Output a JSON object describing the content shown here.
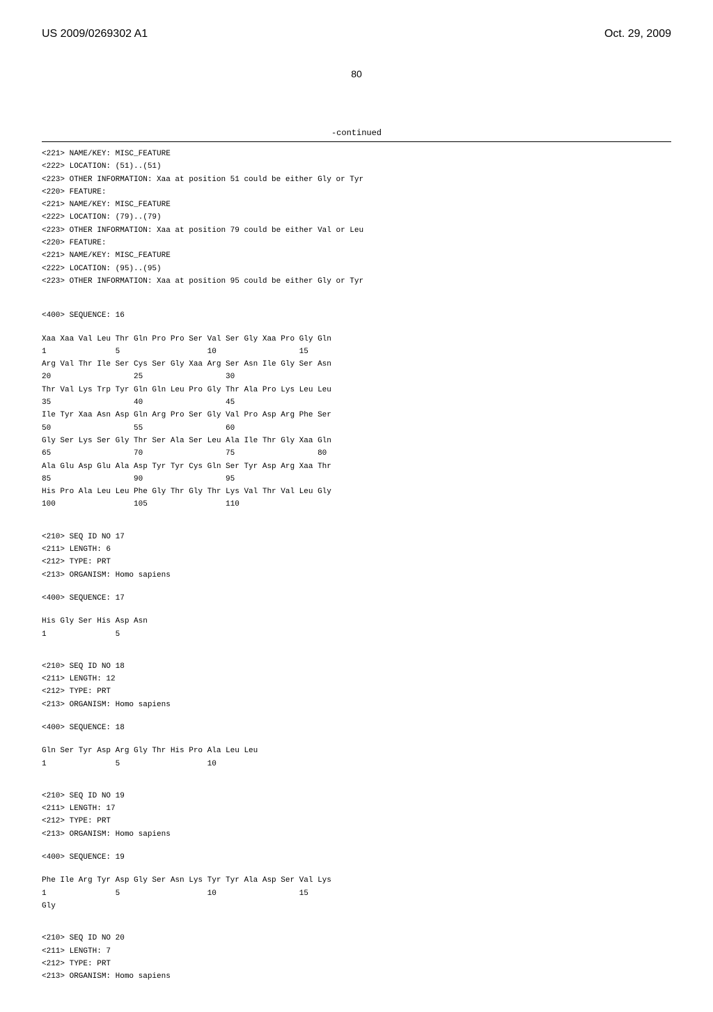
{
  "header": {
    "left": "US 2009/0269302 A1",
    "right": "Oct. 29, 2009"
  },
  "page_number": "80",
  "continued_label": "-continued",
  "features": [
    "<221> NAME/KEY: MISC_FEATURE",
    "<222> LOCATION: (51)..(51)",
    "<223> OTHER INFORMATION: Xaa at position 51 could be either Gly or Tyr",
    "<220> FEATURE:",
    "<221> NAME/KEY: MISC_FEATURE",
    "<222> LOCATION: (79)..(79)",
    "<223> OTHER INFORMATION: Xaa at position 79 could be either Val or Leu",
    "<220> FEATURE:",
    "<221> NAME/KEY: MISC_FEATURE",
    "<222> LOCATION: (95)..(95)",
    "<223> OTHER INFORMATION: Xaa at position 95 could be either Gly or Tyr"
  ],
  "seq16": {
    "label": "<400> SEQUENCE: 16",
    "lines": [
      "Xaa Xaa Val Leu Thr Gln Pro Pro Ser Val Ser Gly Xaa Pro Gly Gln",
      "1               5                   10                  15",
      "",
      "Arg Val Thr Ile Ser Cys Ser Gly Xaa Arg Ser Asn Ile Gly Ser Asn",
      "20                  25                  30",
      "",
      "Thr Val Lys Trp Tyr Gln Gln Leu Pro Gly Thr Ala Pro Lys Leu Leu",
      "35                  40                  45",
      "",
      "Ile Tyr Xaa Asn Asp Gln Arg Pro Ser Gly Val Pro Asp Arg Phe Ser",
      "50                  55                  60",
      "",
      "Gly Ser Lys Ser Gly Thr Ser Ala Ser Leu Ala Ile Thr Gly Xaa Gln",
      "65                  70                  75                  80",
      "",
      "Ala Glu Asp Glu Ala Asp Tyr Tyr Cys Gln Ser Tyr Asp Arg Xaa Thr",
      "85                  90                  95",
      "",
      "His Pro Ala Leu Leu Phe Gly Thr Gly Thr Lys Val Thr Val Leu Gly",
      "100                 105                 110"
    ]
  },
  "seq17": {
    "header": [
      "<210> SEQ ID NO 17",
      "<211> LENGTH: 6",
      "<212> TYPE: PRT",
      "<213> ORGANISM: Homo sapiens"
    ],
    "label": "<400> SEQUENCE: 17",
    "lines": [
      "His Gly Ser His Asp Asn",
      "1               5"
    ]
  },
  "seq18": {
    "header": [
      "<210> SEQ ID NO 18",
      "<211> LENGTH: 12",
      "<212> TYPE: PRT",
      "<213> ORGANISM: Homo sapiens"
    ],
    "label": "<400> SEQUENCE: 18",
    "lines": [
      "Gln Ser Tyr Asp Arg Gly Thr His Pro Ala Leu Leu",
      "1               5                   10"
    ]
  },
  "seq19": {
    "header": [
      "<210> SEQ ID NO 19",
      "<211> LENGTH: 17",
      "<212> TYPE: PRT",
      "<213> ORGANISM: Homo sapiens"
    ],
    "label": "<400> SEQUENCE: 19",
    "lines": [
      "Phe Ile Arg Tyr Asp Gly Ser Asn Lys Tyr Tyr Ala Asp Ser Val Lys",
      "1               5                   10                  15",
      "",
      "Gly"
    ]
  },
  "seq20": {
    "header": [
      "<210> SEQ ID NO 20",
      "<211> LENGTH: 7",
      "<212> TYPE: PRT",
      "<213> ORGANISM: Homo sapiens"
    ]
  }
}
